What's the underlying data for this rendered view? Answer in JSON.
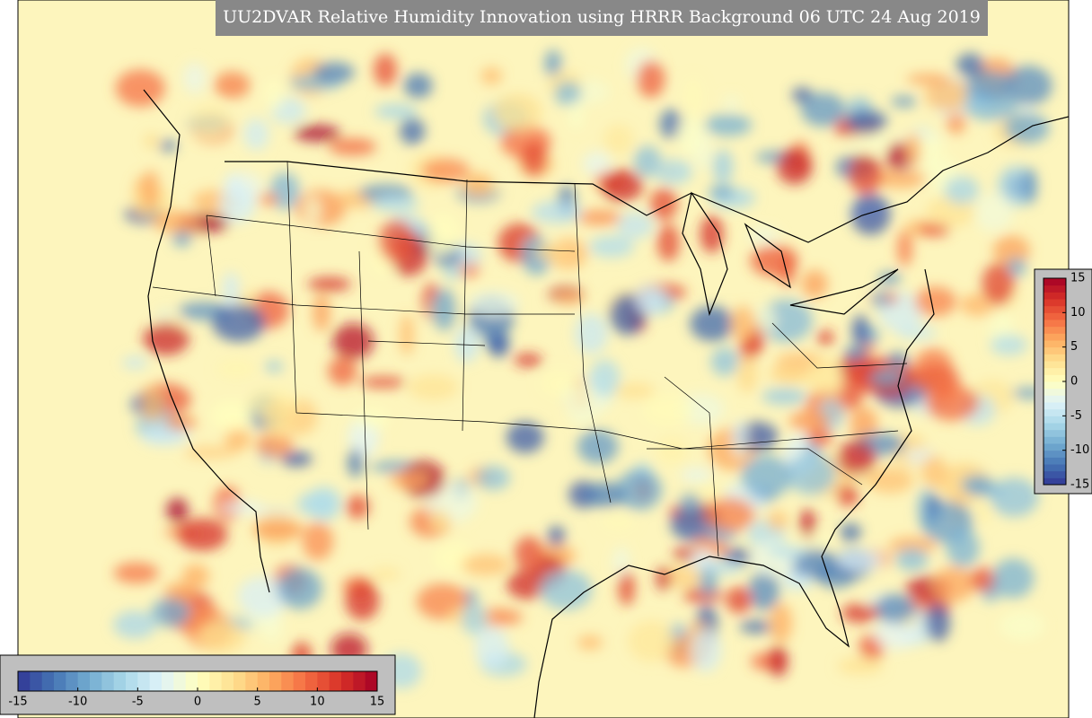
{
  "title": "UU2DVAR Relative Humidity Innovation using HRRR Background 06 UTC 24 Aug 2019",
  "colorbars": [
    {
      "lim": [
        -15,
        15
      ],
      "ticks": [
        -15,
        -10,
        -5,
        0,
        5,
        10,
        15
      ]
    },
    {
      "lim": [
        -15,
        15
      ],
      "ticks": [
        -15,
        -10,
        -5,
        0,
        5,
        10,
        15
      ]
    }
  ]
}
